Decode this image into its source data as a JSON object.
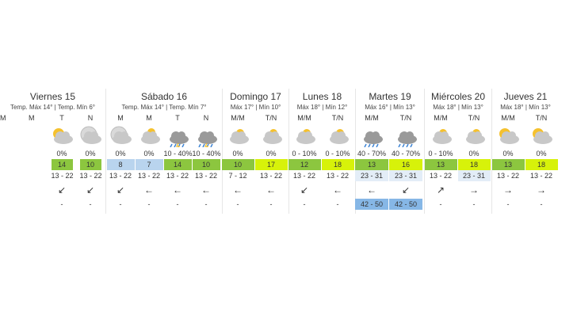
{
  "days": [
    {
      "title": "Viernes 15",
      "subtitle": "Temp. Máx 14° | Temp. Mín 6°",
      "periods": [
        {
          "label": "M"
        },
        {
          "label": "M"
        },
        {
          "label": "T",
          "precipitation": "0%",
          "temp": 14,
          "temp_color": "#8cc63f",
          "wind": "13 - 22",
          "direction": "↙",
          "gust": "-"
        },
        {
          "label": "N",
          "precipitation": "0%",
          "temp": 10,
          "temp_color": "#8cc63f",
          "wind": "13 - 22",
          "direction": "↙",
          "gust": "-"
        }
      ]
    },
    {
      "title": "Sábado 16",
      "subtitle": "Temp. Máx 14° | Temp. Mín 7°",
      "periods": [
        {
          "label": "M",
          "precipitation": "0%",
          "temp": 8,
          "temp_color": "#b9d4ee",
          "wind": "13 - 22",
          "direction": "↙",
          "gust": "-"
        },
        {
          "label": "M",
          "precipitation": "0%",
          "temp": 7,
          "temp_color": "#b9d4ee",
          "wind": "13 - 22",
          "direction": "←",
          "gust": "-"
        },
        {
          "label": "T",
          "precipitation": "10 - 40%",
          "temp": 14,
          "temp_color": "#8cc63f",
          "wind": "13 - 22",
          "direction": "←",
          "gust": "-"
        },
        {
          "label": "N",
          "precipitation": "10 - 40%",
          "temp": 10,
          "temp_color": "#8cc63f",
          "wind": "13 - 22",
          "direction": "←",
          "gust": "-"
        }
      ]
    },
    {
      "title": "Domingo 17",
      "subtitle": "Máx 17° | Mín 10°",
      "periods": [
        {
          "label": "M/M",
          "precipitation": "0%",
          "temp": 10,
          "temp_color": "#8cc63f",
          "wind": "7 - 12",
          "direction": "←",
          "gust": "-"
        },
        {
          "label": "T/N",
          "precipitation": "0%",
          "temp": 17,
          "temp_color": "#d7f20a",
          "wind": "13 - 22",
          "direction": "←",
          "gust": "-"
        }
      ]
    },
    {
      "title": "Lunes 18",
      "subtitle": "Máx 18° | Mín 12°",
      "periods": [
        {
          "label": "M/M",
          "precipitation": "0 - 10%",
          "temp": 12,
          "temp_color": "#8cc63f",
          "wind": "13 - 22",
          "direction": "↙",
          "gust": "-"
        },
        {
          "label": "T/N",
          "precipitation": "0 - 10%",
          "temp": 18,
          "temp_color": "#d7f20a",
          "wind": "13 - 22",
          "direction": "←",
          "gust": "-"
        }
      ]
    },
    {
      "title": "Martes 19",
      "subtitle": "Máx 16° | Mín 13°",
      "periods": [
        {
          "label": "M/M",
          "precipitation": "40 - 70%",
          "temp": 13,
          "temp_color": "#8cc63f",
          "wind": "23 - 31",
          "wind_color": "#e3edf7",
          "direction": "←",
          "gust": "42 - 50",
          "gust_color": "#86b7e6"
        },
        {
          "label": "T/N",
          "precipitation": "40 - 70%",
          "temp": 16,
          "temp_color": "#d7f20a",
          "wind": "23 - 31",
          "wind_color": "#e3edf7",
          "direction": "↙",
          "gust": "42 - 50",
          "gust_color": "#86b7e6"
        }
      ]
    },
    {
      "title": "Miércoles 20",
      "subtitle": "Máx 18° | Mín 13°",
      "periods": [
        {
          "label": "M/M",
          "precipitation": "0 - 10%",
          "temp": 13,
          "temp_color": "#8cc63f",
          "wind": "13 - 22",
          "direction": "↗",
          "gust": "-"
        },
        {
          "label": "T/N",
          "precipitation": "0%",
          "temp": 18,
          "temp_color": "#d7f20a",
          "wind": "23 - 31",
          "wind_color": "#e3edf7",
          "direction": "→",
          "gust": "-"
        }
      ]
    },
    {
      "title": "Jueves 21",
      "subtitle": "Máx 18° | Mín 13°",
      "periods": [
        {
          "label": "M/M",
          "precipitation": "0%",
          "temp": 13,
          "temp_color": "#8cc63f",
          "wind": "13 - 22",
          "direction": "→",
          "gust": "-"
        },
        {
          "label": "T/N",
          "precipitation": "0%",
          "temp": 18,
          "temp_color": "#d7f20a",
          "wind": "13 - 22",
          "direction": "→",
          "gust": "-"
        }
      ]
    }
  ]
}
